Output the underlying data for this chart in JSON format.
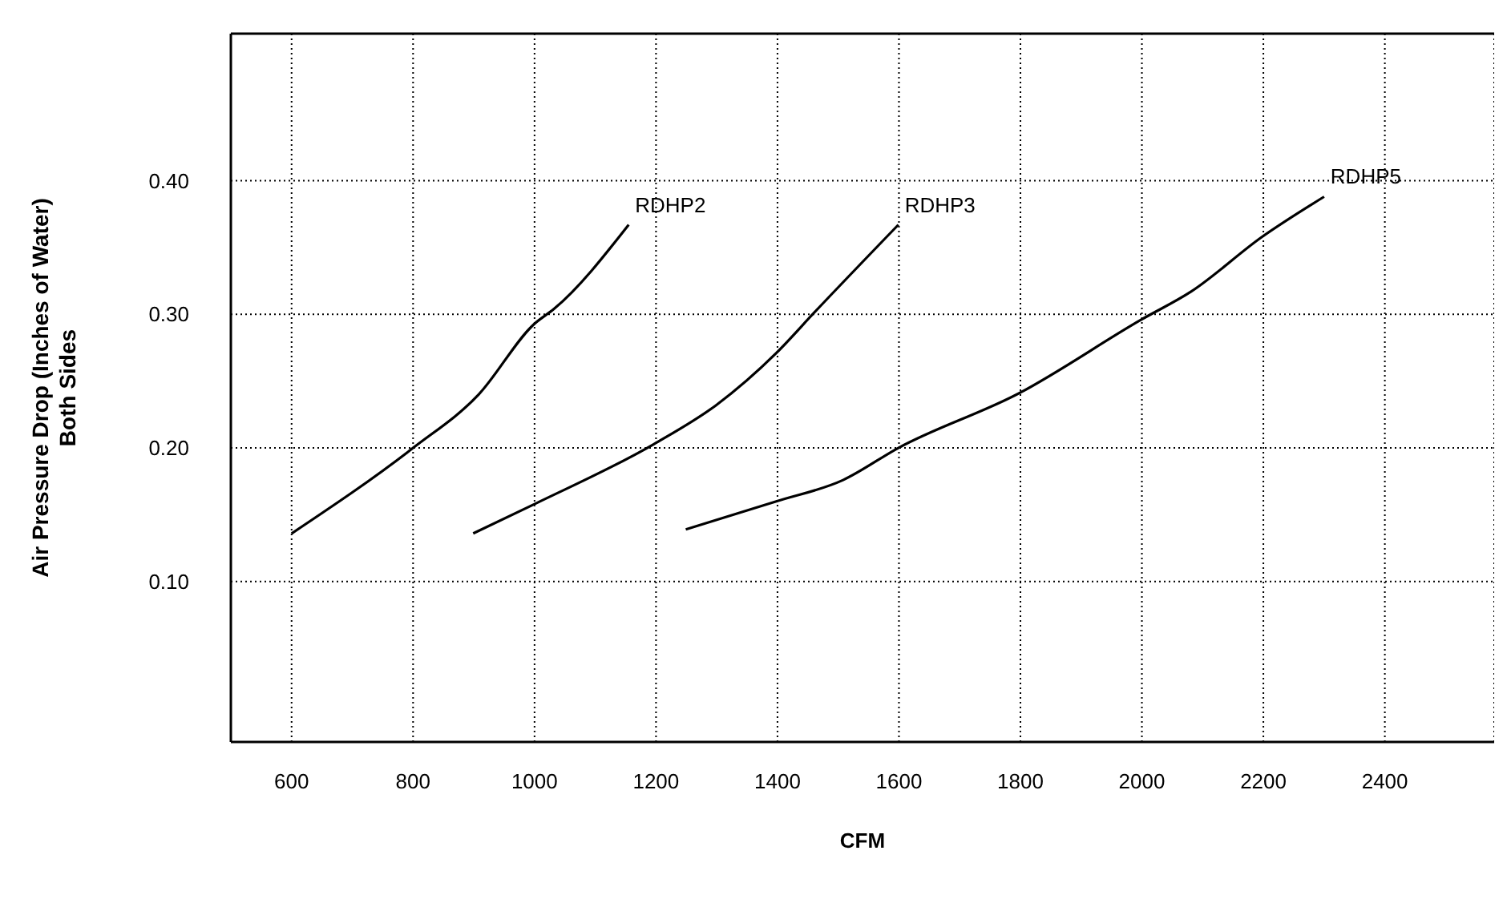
{
  "chart_data": {
    "type": "line",
    "xlabel": "CFM",
    "ylabel": "Air Pressure Drop (Inches of Water)\nBoth Sides",
    "xlim": [
      500,
      2580
    ],
    "ylim": [
      -0.02,
      0.51
    ],
    "xticks": [
      600,
      800,
      1000,
      1200,
      1400,
      1600,
      1800,
      2000,
      2200,
      2400
    ],
    "yticks": [
      {
        "value": 0.1,
        "label": "0.10"
      },
      {
        "value": 0.2,
        "label": "0.20"
      },
      {
        "value": 0.3,
        "label": "0.30"
      },
      {
        "value": 0.4,
        "label": "0.40"
      }
    ],
    "grid": true,
    "marker": "none",
    "line_style": "solid",
    "series": [
      {
        "name": "RDHP2",
        "color": "#000000",
        "x": [
          600,
          800,
          908,
          1000,
          1032,
          1155
        ],
        "values": [
          0.136,
          0.2,
          0.24,
          0.293,
          0.304,
          0.367
        ]
      },
      {
        "name": "RDHP3",
        "color": "#000000",
        "x": [
          899,
          1000,
          1197,
          1299,
          1398,
          1462,
          1599
        ],
        "values": [
          0.136,
          0.158,
          0.203,
          0.232,
          0.271,
          0.302,
          0.367
        ]
      },
      {
        "name": "RDHP5",
        "color": "#000000",
        "x": [
          1249,
          1398,
          1508,
          1599,
          1798,
          1999,
          2081,
          2198,
          2300
        ],
        "values": [
          0.139,
          0.16,
          0.176,
          0.2,
          0.241,
          0.296,
          0.317,
          0.358,
          0.388
        ]
      }
    ]
  }
}
